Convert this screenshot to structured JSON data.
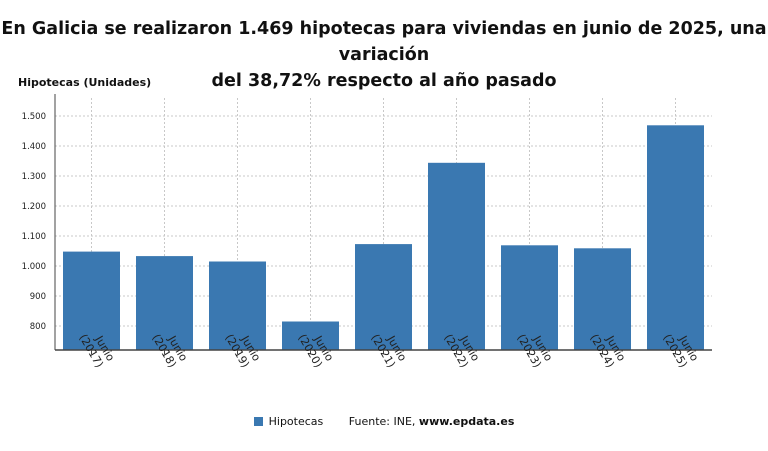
{
  "title_line1": "En Galicia se realizaron 1.469 hipotecas para viviendas en junio de 2025, una variación",
  "title_line2": "del 38,72% respecto al año pasado",
  "legend": {
    "series_label": "Hipotecas",
    "source_label": "Fuente: INE, ",
    "source_site": "www.epdata.es"
  },
  "colors": {
    "bar": "#3a78b1",
    "grid": "#c8c8c8",
    "axis": "#444444"
  },
  "chart_data": {
    "type": "bar",
    "title": "En Galicia se realizaron 1.469 hipotecas para viviendas en junio de 2025, una variación del 38,72% respecto al año pasado",
    "ylabel": "Hipotecas (Unidades)",
    "xlabel": "",
    "categories": [
      [
        "Junio",
        "(2017)"
      ],
      [
        "Junio",
        "(2018)"
      ],
      [
        "Junio",
        "(2019)"
      ],
      [
        "Junio",
        "(2020)"
      ],
      [
        "Junio",
        "(2021)"
      ],
      [
        "Junio",
        "(2022)"
      ],
      [
        "Junio",
        "(2023)"
      ],
      [
        "Junio",
        "(2024)"
      ],
      [
        "Junio",
        "(2025)"
      ]
    ],
    "series": [
      {
        "name": "Hipotecas",
        "values": [
          1048,
          1033,
          1015,
          815,
          1073,
          1344,
          1069,
          1059,
          1469
        ]
      }
    ],
    "ylim": [
      720,
      1560
    ],
    "yticks": [
      800,
      900,
      1000,
      1100,
      1200,
      1300,
      1400,
      1500
    ],
    "ytick_labels": [
      "800",
      "900",
      "1.000",
      "1.100",
      "1.200",
      "1.300",
      "1.400",
      "1.500"
    ],
    "grid": true,
    "legend_position": "bottom"
  }
}
